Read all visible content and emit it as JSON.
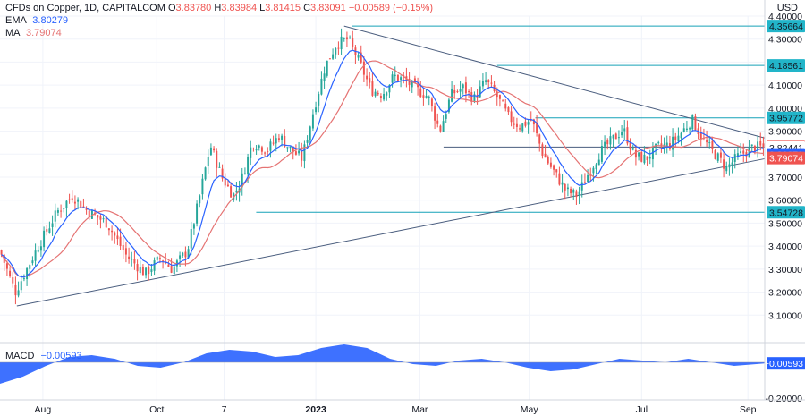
{
  "header": {
    "symbol": "CFDs on Copper, 1D, CAPITALCOM",
    "ohlc": [
      {
        "key": "O",
        "value": "3.83780"
      },
      {
        "key": "H",
        "value": "3.83984"
      },
      {
        "key": "L",
        "value": "3.81415"
      },
      {
        "key": "C",
        "value": "3.83091"
      }
    ],
    "change": "−0.00589 (−0.15%)",
    "currency": "USD",
    "ema_label": "EMA",
    "ema_value": "3.80279",
    "ma_label": "MA",
    "ma_value": "3.79074",
    "macd_label": "MACD",
    "macd_value": "−0.00593"
  },
  "colors": {
    "up": "#26a69a",
    "down": "#ef5350",
    "ema": "#2962ff",
    "ma": "#e57373",
    "trend": "#4a5d7e",
    "level": "#17a2b8",
    "macd_fill": "#2962ff",
    "grid": "#f0f3fa"
  },
  "chart_data": {
    "type": "candlestick",
    "title": "CFDs on Copper, 1D, CAPITALCOM",
    "y_axis": {
      "ylim": [
        3.0,
        4.4
      ],
      "ticks": [
        "4.40000",
        "4.30000",
        "4.20000",
        "4.10000",
        "4.00000",
        "3.90000",
        "3.80000",
        "3.70000",
        "3.60000",
        "3.50000",
        "3.40000",
        "3.30000",
        "3.20000",
        "3.10000"
      ]
    },
    "x_axis": {
      "labels": [
        "Aug",
        "Oct",
        "7",
        "2023",
        "Mar",
        "May",
        "Jul",
        "Sep"
      ],
      "label_positions": [
        0.056,
        0.205,
        0.293,
        0.413,
        0.549,
        0.692,
        0.839,
        0.978
      ]
    },
    "price_path": [
      [
        0.0,
        3.38
      ],
      [
        0.02,
        3.2
      ],
      [
        0.05,
        3.4
      ],
      [
        0.075,
        3.55
      ],
      [
        0.095,
        3.62
      ],
      [
        0.115,
        3.55
      ],
      [
        0.14,
        3.5
      ],
      [
        0.165,
        3.36
      ],
      [
        0.19,
        3.28
      ],
      [
        0.21,
        3.35
      ],
      [
        0.225,
        3.3
      ],
      [
        0.245,
        3.38
      ],
      [
        0.26,
        3.6
      ],
      [
        0.275,
        3.84
      ],
      [
        0.29,
        3.7
      ],
      [
        0.305,
        3.62
      ],
      [
        0.315,
        3.68
      ],
      [
        0.33,
        3.85
      ],
      [
        0.35,
        3.82
      ],
      [
        0.365,
        3.88
      ],
      [
        0.38,
        3.82
      ],
      [
        0.395,
        3.78
      ],
      [
        0.41,
        3.99
      ],
      [
        0.425,
        4.18
      ],
      [
        0.44,
        4.28
      ],
      [
        0.455,
        4.3
      ],
      [
        0.47,
        4.2
      ],
      [
        0.485,
        4.08
      ],
      [
        0.5,
        4.06
      ],
      [
        0.515,
        4.14
      ],
      [
        0.53,
        4.12
      ],
      [
        0.545,
        4.08
      ],
      [
        0.56,
        4.05
      ],
      [
        0.575,
        3.9
      ],
      [
        0.59,
        4.06
      ],
      [
        0.605,
        4.09
      ],
      [
        0.62,
        4.04
      ],
      [
        0.635,
        4.12
      ],
      [
        0.65,
        4.05
      ],
      [
        0.665,
        3.96
      ],
      [
        0.68,
        3.92
      ],
      [
        0.695,
        3.95
      ],
      [
        0.71,
        3.8
      ],
      [
        0.725,
        3.72
      ],
      [
        0.74,
        3.64
      ],
      [
        0.755,
        3.62
      ],
      [
        0.77,
        3.72
      ],
      [
        0.785,
        3.81
      ],
      [
        0.8,
        3.86
      ],
      [
        0.815,
        3.91
      ],
      [
        0.83,
        3.79
      ],
      [
        0.845,
        3.78
      ],
      [
        0.86,
        3.83
      ],
      [
        0.875,
        3.84
      ],
      [
        0.89,
        3.89
      ],
      [
        0.905,
        3.95
      ],
      [
        0.92,
        3.86
      ],
      [
        0.935,
        3.8
      ],
      [
        0.95,
        3.74
      ],
      [
        0.965,
        3.79
      ],
      [
        0.985,
        3.83
      ]
    ],
    "series": [
      {
        "name": "EMA",
        "last": 3.80279
      },
      {
        "name": "MA",
        "last": 3.79074
      },
      {
        "name": "MACD",
        "last": -0.00593
      }
    ],
    "horizontal_levels": [
      {
        "label": "4.35664",
        "value": 4.35664,
        "x_start": 0.46
      },
      {
        "label": "4.18561",
        "value": 4.18561,
        "x_start": 0.65
      },
      {
        "label": "3.95772",
        "value": 3.95772,
        "x_start": 0.7
      },
      {
        "label": "3.83091",
        "value": 3.83091,
        "x_start": 0.58,
        "tag": "current"
      },
      {
        "label": "3.82441",
        "value": 3.82441,
        "tag": "only"
      },
      {
        "label": "3.80279",
        "value": 3.80279,
        "tag": "ema"
      },
      {
        "label": "3.79074",
        "value": 3.79074,
        "tag": "ma"
      },
      {
        "label": "3.54728",
        "value": 3.54728,
        "x_start": 0.335
      }
    ],
    "trendlines": [
      {
        "name": "upper",
        "from": [
          0.45,
          4.35664
        ],
        "to": [
          1.0,
          3.87
        ]
      },
      {
        "name": "lower",
        "from": [
          0.022,
          3.14
        ],
        "to": [
          1.0,
          3.78
        ]
      }
    ],
    "macd": {
      "ylim": [
        -0.2,
        0.1
      ],
      "tick": "-0.20000",
      "path": [
        [
          0.0,
          -0.12
        ],
        [
          0.03,
          -0.08
        ],
        [
          0.06,
          -0.02
        ],
        [
          0.09,
          0.03
        ],
        [
          0.12,
          0.04
        ],
        [
          0.15,
          0.02
        ],
        [
          0.18,
          -0.02
        ],
        [
          0.21,
          -0.03
        ],
        [
          0.24,
          0.0
        ],
        [
          0.27,
          0.05
        ],
        [
          0.3,
          0.07
        ],
        [
          0.33,
          0.06
        ],
        [
          0.36,
          0.03
        ],
        [
          0.39,
          0.04
        ],
        [
          0.42,
          0.08
        ],
        [
          0.45,
          0.1
        ],
        [
          0.48,
          0.08
        ],
        [
          0.51,
          0.02
        ],
        [
          0.54,
          -0.01
        ],
        [
          0.57,
          -0.02
        ],
        [
          0.6,
          0.01
        ],
        [
          0.63,
          0.02
        ],
        [
          0.66,
          0.0
        ],
        [
          0.69,
          -0.03
        ],
        [
          0.72,
          -0.05
        ],
        [
          0.75,
          -0.04
        ],
        [
          0.78,
          -0.01
        ],
        [
          0.81,
          0.02
        ],
        [
          0.84,
          0.01
        ],
        [
          0.87,
          0.0
        ],
        [
          0.9,
          0.02
        ],
        [
          0.93,
          0.0
        ],
        [
          0.96,
          -0.02
        ],
        [
          1.0,
          -0.006
        ]
      ]
    }
  }
}
